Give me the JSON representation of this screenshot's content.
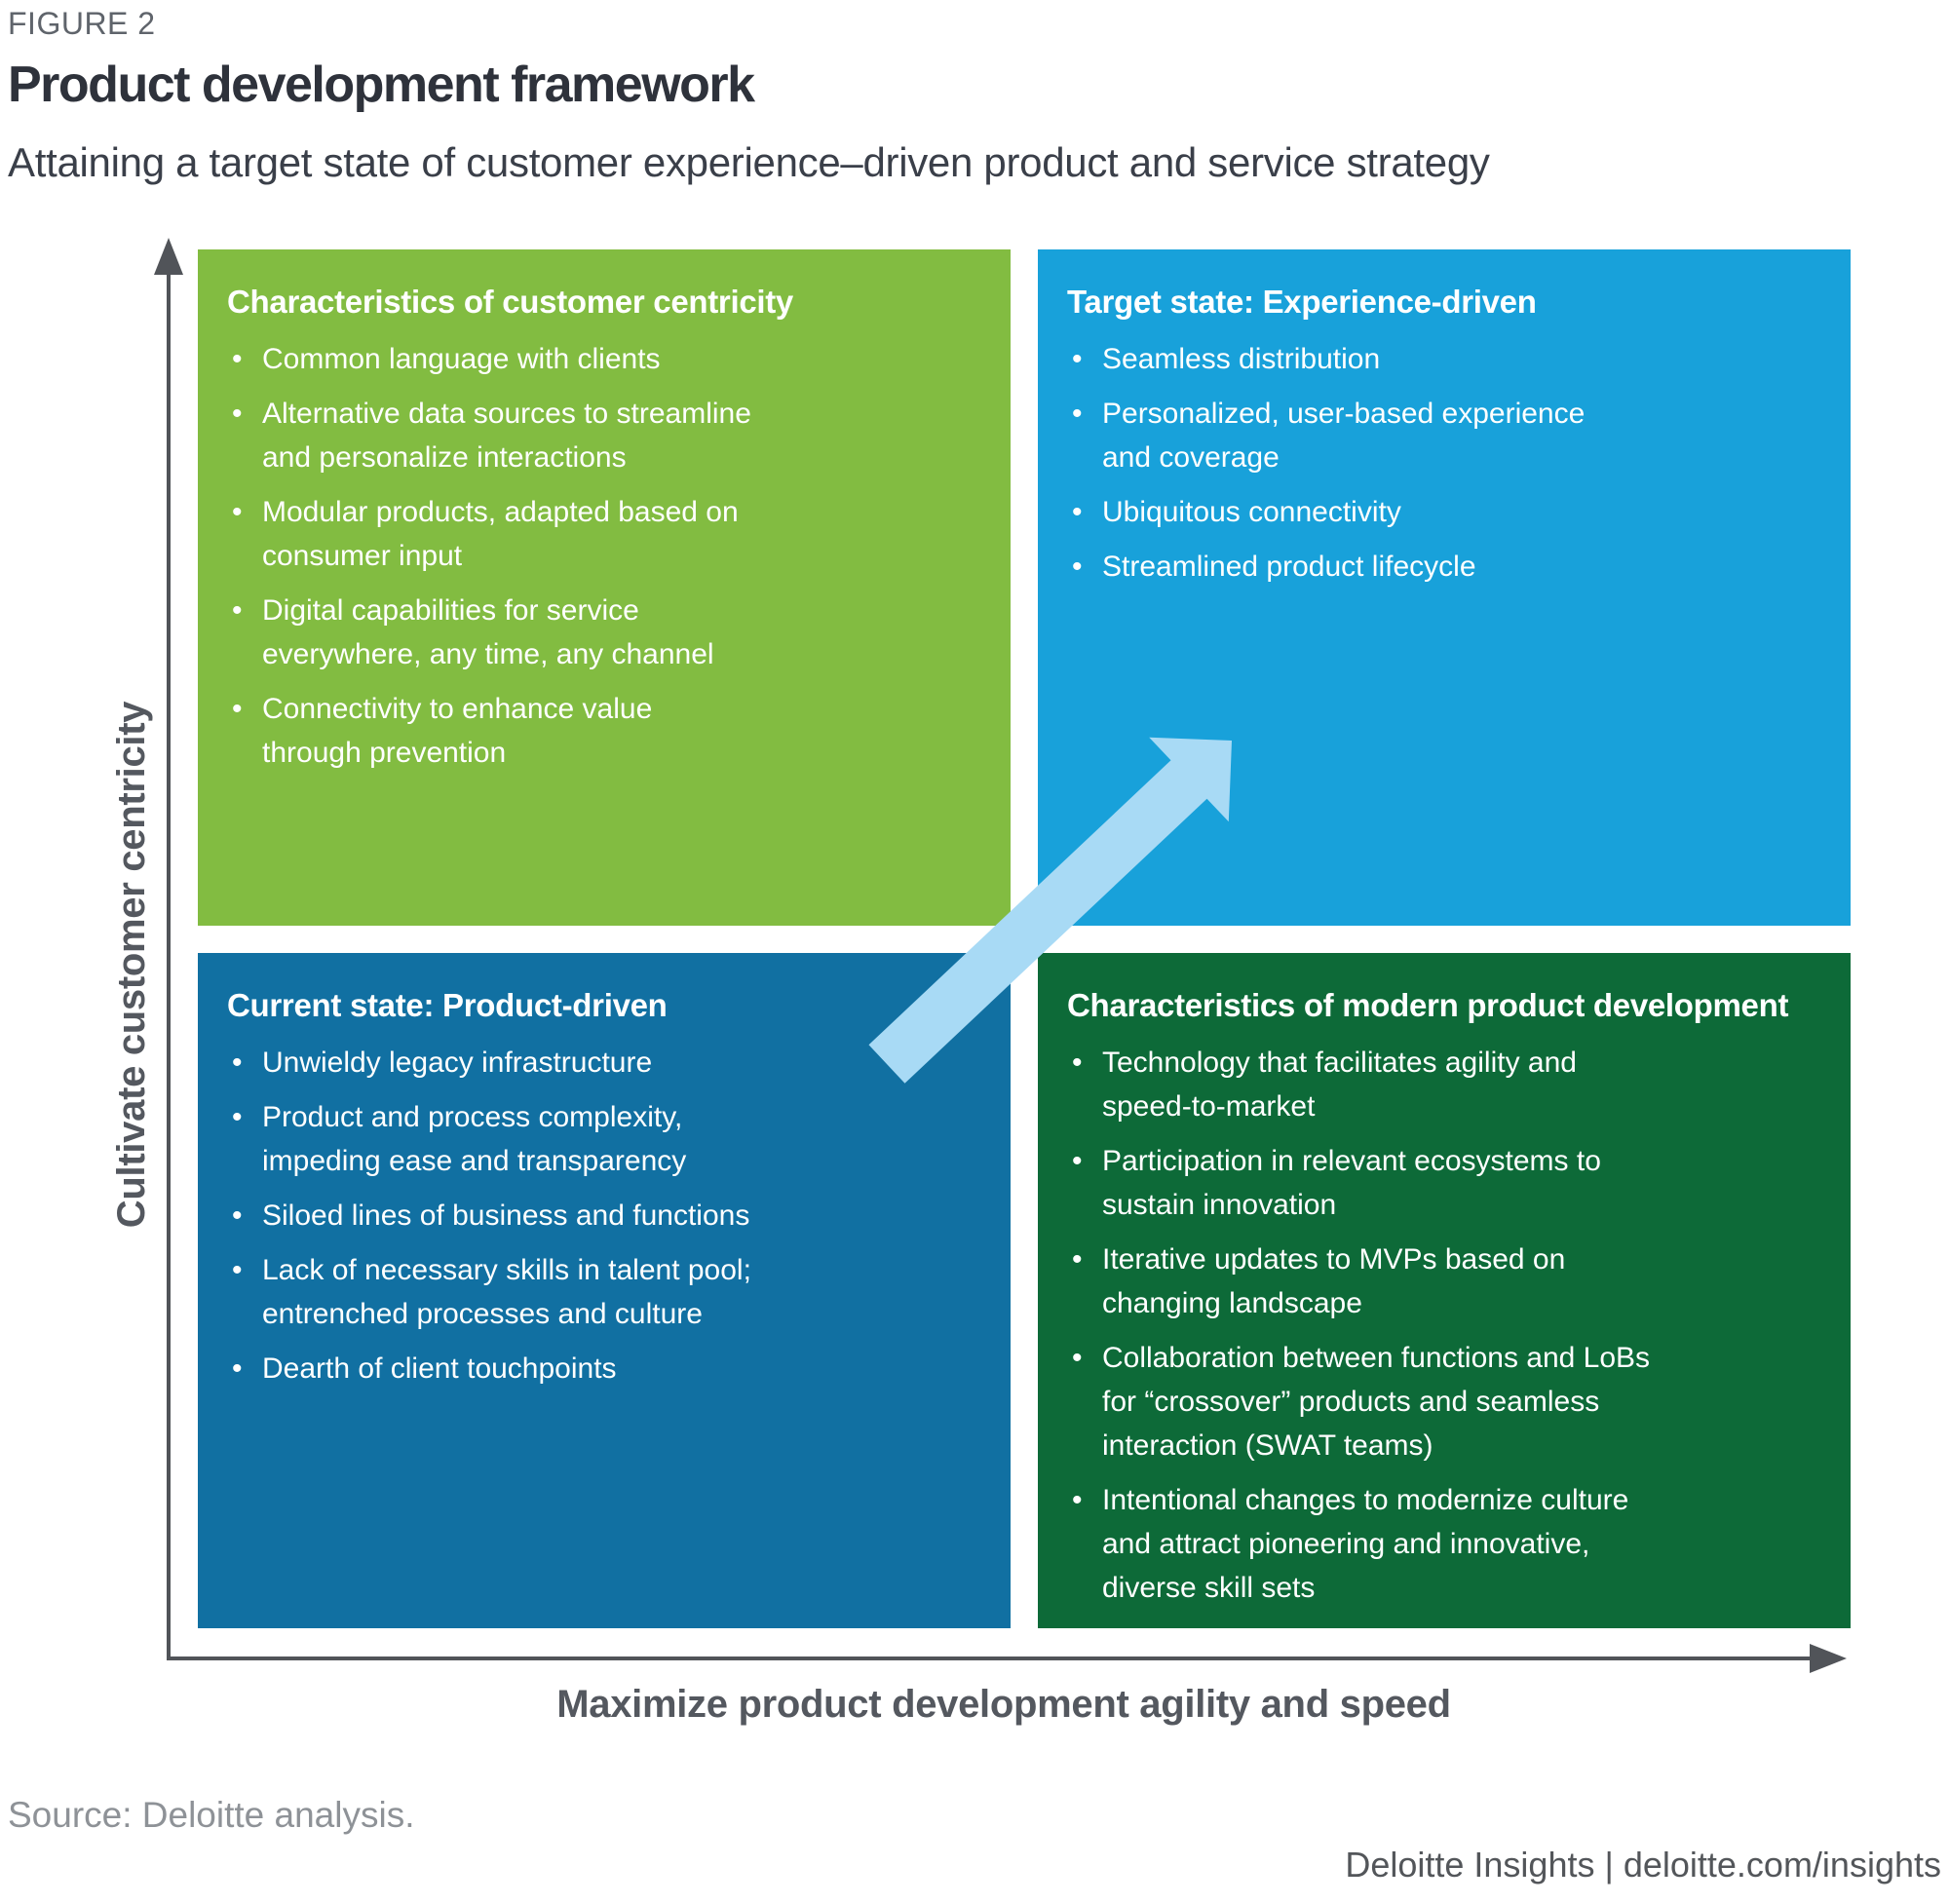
{
  "header": {
    "eyebrow": "FIGURE 2",
    "title": "Product development framework",
    "subtitle": "Attaining a target state of customer experience–driven product and service strategy"
  },
  "axes": {
    "y_label": "Cultivate customer centricity",
    "x_label": "Maximize product development agility and speed"
  },
  "quadrants": [
    {
      "id": "customer-centricity",
      "title": "Characteristics of customer centricity",
      "bullets": [
        "Common language with clients",
        "Alternative data sources to streamline\nand personalize interactions",
        "Modular products, adapted based on\nconsumer input",
        "Digital capabilities for service\neverywhere, any time, any channel",
        "Connectivity to enhance value\nthrough prevention"
      ]
    },
    {
      "id": "target-state",
      "title": "Target state: Experience-driven",
      "bullets": [
        "Seamless distribution",
        "Personalized, user-based experience\nand coverage",
        "Ubiquitous connectivity",
        "Streamlined product lifecycle"
      ]
    },
    {
      "id": "current-state",
      "title": "Current state: Product-driven",
      "bullets": [
        "Unwieldy legacy infrastructure",
        "Product and process complexity,\nimpeding ease and transparency",
        "Siloed lines of business and functions",
        "Lack of necessary skills in talent pool;\nentrenched processes and culture",
        "Dearth of client touchpoints"
      ]
    },
    {
      "id": "modern-product-development",
      "title": "Characteristics of modern product development",
      "bullets": [
        "Technology that facilitates agility and\nspeed-to-market",
        "Participation in relevant ecosystems to\nsustain innovation",
        "Iterative updates to MVPs based on\nchanging landscape",
        "Collaboration between functions and LoBs\nfor “crossover” products and seamless\ninteraction (SWAT teams)",
        "Intentional changes to modernize culture\nand attract pioneering and innovative,\ndiverse skill sets"
      ]
    }
  ],
  "colors": {
    "quadrant_green": "#82BC41",
    "quadrant_cyan": "#18A1DA",
    "quadrant_blue": "#1170A2",
    "quadrant_dark_green": "#0D6A38",
    "arrow_light_blue": "#A8DAF5",
    "axis_gray": "#515459"
  },
  "footer": {
    "source": "Source: Deloitte analysis.",
    "brand": "Deloitte Insights | deloitte.com/insights"
  }
}
